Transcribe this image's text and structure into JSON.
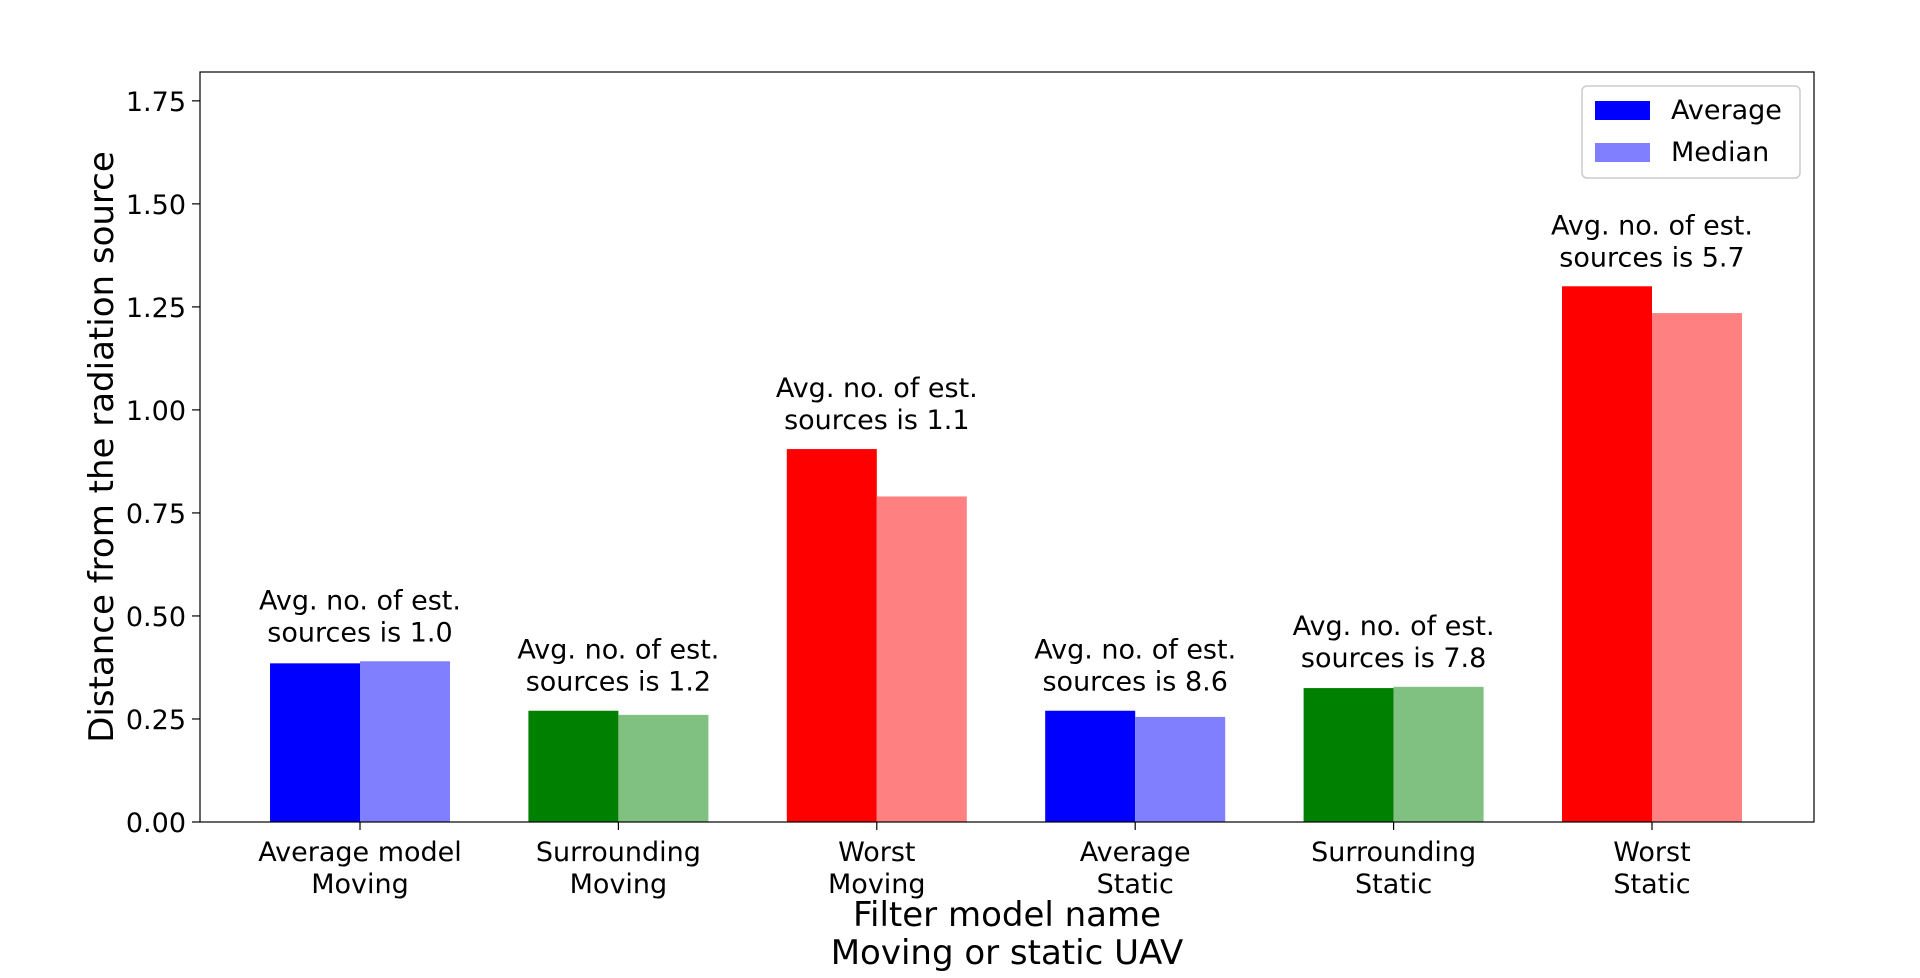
{
  "chart_data": {
    "type": "bar",
    "xlabel": "Filter model name\nMoving or static UAV",
    "ylabel": "Distance from the radiation source",
    "ylim": [
      0,
      1.82
    ],
    "yticks": [
      "0.00",
      "0.25",
      "0.50",
      "0.75",
      "1.00",
      "1.25",
      "1.50",
      "1.75"
    ],
    "ytick_values": [
      0,
      0.25,
      0.5,
      0.75,
      1.0,
      1.25,
      1.5,
      1.75
    ],
    "grid": false,
    "legend_position": "top-right",
    "categories": [
      "Average model\nMoving",
      "Surrounding\nMoving",
      "Worst\nMoving",
      "Average\nStatic",
      "Surrounding\nStatic",
      "Worst\nStatic"
    ],
    "series": [
      {
        "name": "Average",
        "values": [
          0.385,
          0.27,
          0.905,
          0.27,
          0.325,
          1.3
        ],
        "colors": [
          "#0000ff",
          "#008000",
          "#ff0000",
          "#0000ff",
          "#008000",
          "#ff0000"
        ]
      },
      {
        "name": "Median",
        "values": [
          0.39,
          0.26,
          0.79,
          0.255,
          0.328,
          1.235
        ],
        "colors": [
          "#8080ff",
          "#80c080",
          "#ff8080",
          "#8080ff",
          "#80c080",
          "#ff8080"
        ]
      }
    ],
    "legend_colors": [
      "#0000ff",
      "#8080ff"
    ],
    "annotations": [
      "Avg. no. of est.\nsources is 1.0",
      "Avg. no. of est.\nsources is 1.2",
      "Avg. no. of est.\nsources is 1.1",
      "Avg. no. of est.\nsources is 8.6",
      "Avg. no. of est.\nsources is 7.8",
      "Avg. no. of est.\nsources is 5.7"
    ]
  }
}
